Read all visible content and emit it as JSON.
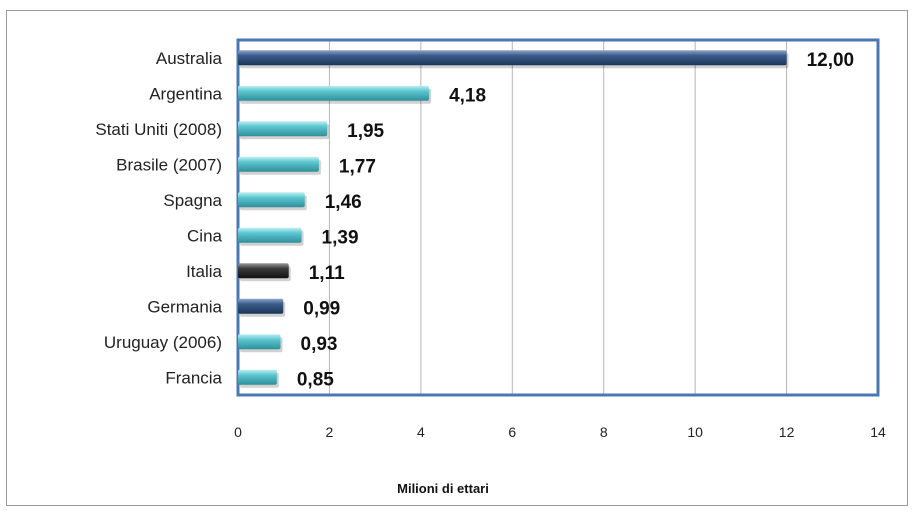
{
  "chart_data": {
    "type": "bar",
    "orientation": "horizontal",
    "categories": [
      "Australia",
      "Argentina",
      "Stati Uniti (2008)",
      "Brasile (2007)",
      "Spagna",
      "Cina",
      "Italia",
      "Germania",
      "Uruguay (2006)",
      "Francia"
    ],
    "values": [
      12.0,
      4.18,
      1.95,
      1.77,
      1.46,
      1.39,
      1.11,
      0.99,
      0.93,
      0.85
    ],
    "value_labels": [
      "12,00",
      "4,18",
      "1,95",
      "1,77",
      "1,46",
      "1,39",
      "1,11",
      "0,99",
      "0,93",
      "0,85"
    ],
    "bar_colors": [
      "#2e4f7e",
      "#4bb8c4",
      "#4bb8c4",
      "#4bb8c4",
      "#4bb8c4",
      "#4bb8c4",
      "#2b2b2b",
      "#2e4f7e",
      "#4bb8c4",
      "#4bb8c4"
    ],
    "xlim": [
      0,
      14
    ],
    "xticks": [
      0,
      2,
      4,
      6,
      8,
      10,
      12,
      14
    ],
    "xlabel": "Milioni di ettari",
    "grid": true,
    "legend": "none",
    "plot_border_color": "#4a78b5"
  }
}
